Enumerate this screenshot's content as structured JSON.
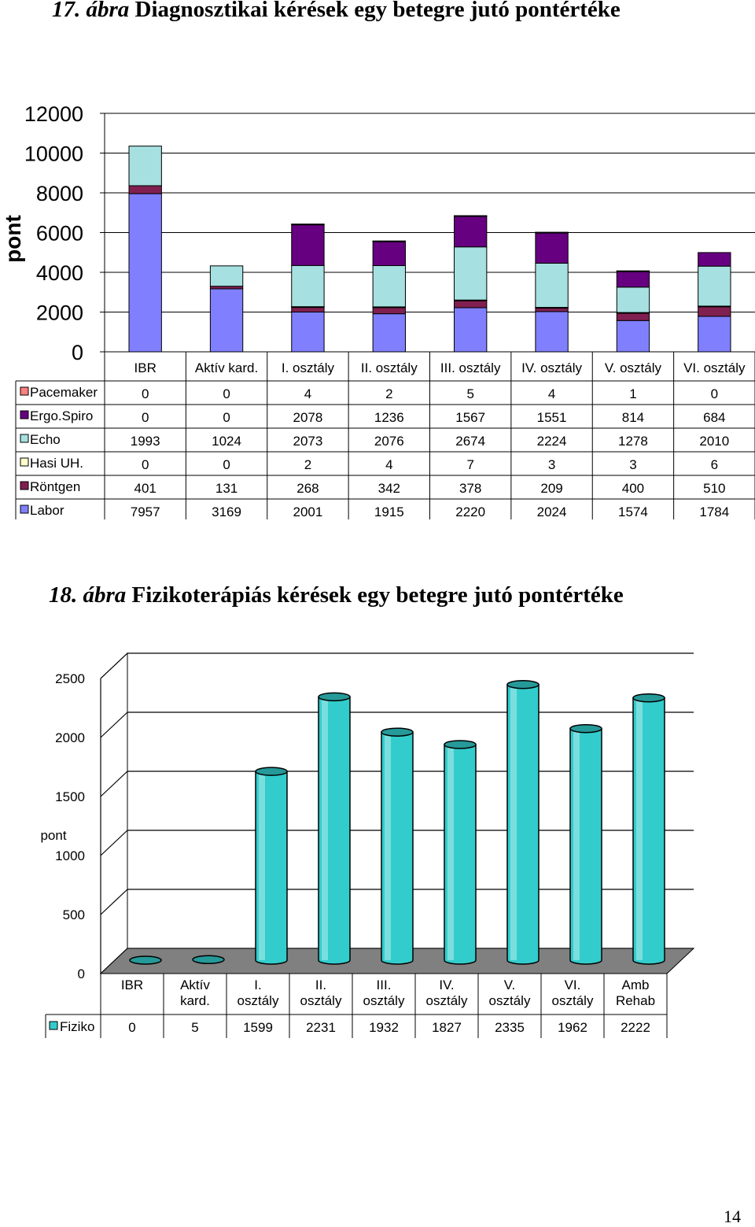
{
  "figures": [
    {
      "label": "17. ábra",
      "title": "Diagnosztikai kérések egy betegre jutó pontértéke"
    },
    {
      "label": "18. ábra",
      "title": "Fizikoterápiás kérések egy betegre jutó pontértéke"
    }
  ],
  "page_number": "14",
  "chart_data": [
    {
      "type": "bar",
      "stacked": true,
      "ylabel": "pont",
      "ylim": [
        0,
        12000
      ],
      "yticks": [
        0,
        2000,
        4000,
        6000,
        8000,
        10000,
        12000
      ],
      "grid": true,
      "categories": [
        "IBR",
        "Aktív kard.",
        "I. osztály",
        "II. osztály",
        "III. osztály",
        "IV. osztály",
        "V. osztály",
        "VI. osztály"
      ],
      "series": [
        {
          "name": "Pacemaker",
          "color": "#ff8080",
          "values": [
            0,
            0,
            4,
            2,
            5,
            4,
            1,
            0
          ]
        },
        {
          "name": "Ergo.Spiro",
          "color": "#660080",
          "values": [
            0,
            0,
            2078,
            1236,
            1567,
            1551,
            814,
            684
          ]
        },
        {
          "name": "Echo",
          "color": "#a6e0e0",
          "values": [
            1993,
            1024,
            2073,
            2076,
            2674,
            2224,
            1278,
            2010
          ]
        },
        {
          "name": "Hasi UH.",
          "color": "#ffffcc",
          "values": [
            0,
            0,
            2,
            4,
            7,
            3,
            3,
            6
          ]
        },
        {
          "name": "Röntgen",
          "color": "#802050",
          "values": [
            401,
            131,
            268,
            342,
            378,
            209,
            400,
            510
          ]
        },
        {
          "name": "Labor",
          "color": "#8080ff",
          "values": [
            7957,
            3169,
            2001,
            1915,
            2220,
            2024,
            1574,
            1784
          ]
        }
      ],
      "stack_order_bottom_to_top": [
        "Labor",
        "Röntgen",
        "Hasi UH.",
        "Echo",
        "Ergo.Spiro",
        "Pacemaker"
      ]
    },
    {
      "type": "bar",
      "style": "3d-cylinder",
      "ylabel": "pont",
      "ylim": [
        0,
        2500
      ],
      "yticks": [
        0,
        500,
        1000,
        1500,
        2000,
        2500
      ],
      "grid": true,
      "categories": [
        "IBR",
        "Aktív kard.",
        "I. osztály",
        "II. osztály",
        "III. osztály",
        "IV. osztály",
        "V. osztály",
        "VI. osztály",
        "Amb Rehab"
      ],
      "category_lines": [
        [
          "IBR"
        ],
        [
          "Aktív",
          "kard."
        ],
        [
          "I.",
          "osztály"
        ],
        [
          "II.",
          "osztály"
        ],
        [
          "III.",
          "osztály"
        ],
        [
          "IV.",
          "osztály"
        ],
        [
          "V.",
          "osztály"
        ],
        [
          "VI.",
          "osztály"
        ],
        [
          "Amb",
          "Rehab"
        ]
      ],
      "series": [
        {
          "name": "Fiziko",
          "color": "#33cccc",
          "values": [
            0,
            5,
            1599,
            2231,
            1932,
            1827,
            2335,
            1962,
            2222
          ]
        }
      ]
    }
  ]
}
